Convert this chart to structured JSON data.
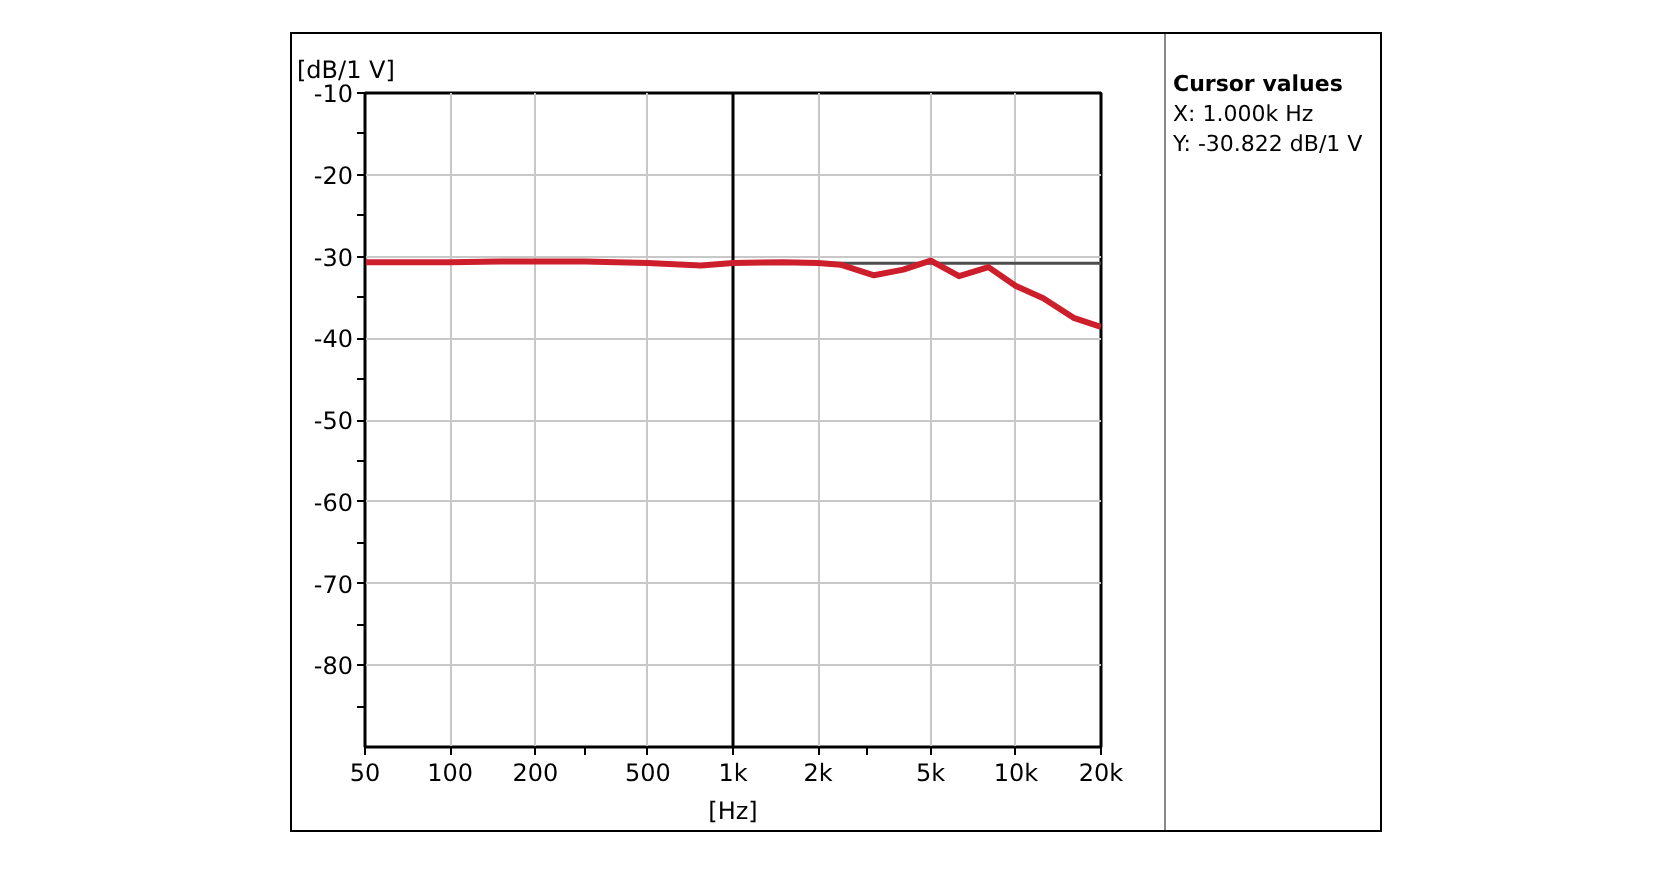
{
  "chart_data": {
    "type": "line",
    "ylabel": "[dB/1 V]",
    "xlabel": "[Hz]",
    "log": "x",
    "x": [
      50,
      100,
      150,
      200,
      300,
      500,
      770,
      1000,
      1500,
      2000,
      2400,
      3150,
      4000,
      5000,
      6300,
      8000,
      10000,
      12500,
      16000,
      20000
    ],
    "series": [
      {
        "color": "#cc1f2b",
        "values": [
          -30.7,
          -30.7,
          -30.6,
          -30.6,
          -30.6,
          -30.8,
          -31.1,
          -30.8,
          -30.7,
          -30.8,
          -31.0,
          -32.3,
          -31.6,
          -30.5,
          -32.4,
          -31.3,
          -33.6,
          -35.1,
          -37.5,
          -38.6
        ]
      }
    ],
    "xlim": [
      50,
      20000
    ],
    "xticks": [
      50,
      100,
      200,
      {
        "value": 300,
        "label": null
      },
      500,
      {
        "value": 1000,
        "label": "1k"
      },
      {
        "value": 2000,
        "label": "2k"
      },
      {
        "value": 3000,
        "label": null
      },
      {
        "value": 5000,
        "label": "5k"
      },
      {
        "value": 10000,
        "label": "10k"
      },
      {
        "value": 20000,
        "label": "20k"
      }
    ],
    "ylim": [
      -90,
      -10
    ],
    "yticks": [
      -10,
      {
        "value": -15,
        "label": null
      },
      -20,
      {
        "value": -25,
        "label": null
      },
      -30,
      {
        "value": -35,
        "label": null
      },
      -40,
      {
        "value": -45,
        "label": null
      },
      -50,
      {
        "value": -55,
        "label": null
      },
      -60,
      {
        "value": -65,
        "label": null
      },
      -70,
      {
        "value": -75,
        "label": null
      },
      -80,
      {
        "value": -85,
        "label": null
      }
    ],
    "grid": true,
    "ref_lines": [
      {
        "axis": "x",
        "value": 1000,
        "color": "#000000"
      },
      {
        "axis": "y",
        "value": -30.822,
        "color": "#4d4d4d"
      }
    ],
    "annotations": [
      "Cursor values",
      "X: 1.000k Hz",
      "Y: -30.822 dB/1 V"
    ]
  }
}
